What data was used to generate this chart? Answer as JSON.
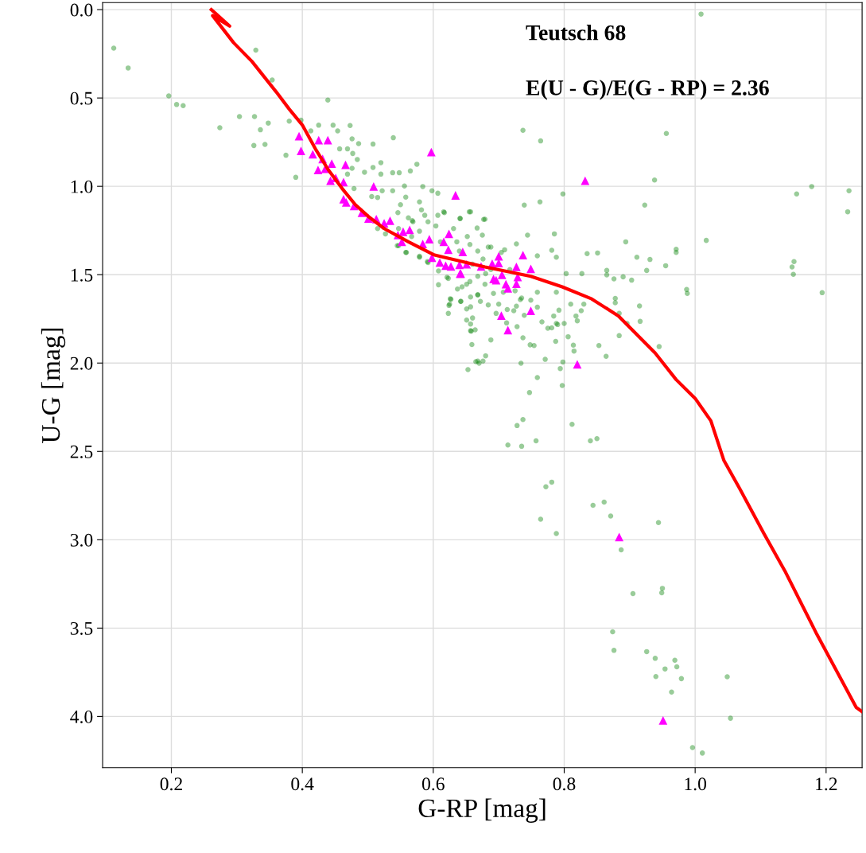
{
  "chart_data": {
    "type": "scatter",
    "xlabel": "G-RP [mag]",
    "ylabel": "U-G [mag]",
    "annotations": [
      "Teutsch 68",
      "E(U - G)/E(G - RP) = 2.36"
    ],
    "xlim": [
      0.095,
      1.255
    ],
    "ylim": [
      4.29,
      -0.04
    ],
    "xticks": [
      0.2,
      0.4,
      0.6,
      0.8,
      {
        "value": 1,
        "label": "1.0"
      },
      1.2
    ],
    "yticks": [
      {
        "value": 0,
        "label": "0.0"
      },
      0.5,
      {
        "value": 1,
        "label": "1.0"
      },
      1.5,
      {
        "value": 2,
        "label": "2.0"
      },
      2.5,
      {
        "value": 3,
        "label": "3.0"
      },
      3.5,
      {
        "value": 4,
        "label": "4.0"
      }
    ],
    "grid": true,
    "legend": false,
    "series": [
      {
        "marker": "circle",
        "color": "#008000",
        "x": [
          0.112,
          0.134,
          0.329,
          0.196,
          0.208,
          0.218,
          0.354,
          0.439,
          0.304,
          0.327,
          0.348,
          0.274,
          0.336,
          0.326,
          0.343,
          0.375,
          0.39,
          0.38,
          0.398,
          0.413,
          0.425,
          0.447,
          0.454,
          0.473,
          0.476,
          0.486,
          0.457,
          0.469,
          0.477,
          0.484,
          0.476,
          0.508,
          0.539,
          0.469,
          0.479,
          0.495,
          0.508,
          0.52,
          0.52,
          0.538,
          0.548,
          0.565,
          0.575,
          0.522,
          0.538,
          0.556,
          0.558,
          0.506,
          0.515,
          0.584,
          0.598,
          0.607,
          0.55,
          0.579,
          0.546,
          0.562,
          0.582,
          0.568,
          0.592,
          0.607,
          0.617,
          0.641,
          0.655,
          0.677,
          0.667,
          0.545,
          0.558,
          0.579,
          0.592,
          0.608,
          0.623,
          0.627,
          0.625,
          0.623,
          0.637,
          0.651,
          0.642,
          0.657,
          0.668,
          0.651,
          0.657,
          0.651,
          0.657,
          0.66,
          0.657,
          0.664,
          0.659,
          0.665,
          0.67,
          0.653,
          0.668,
          0.68,
          0.688,
          0.734,
          0.759,
          0.747,
          0.737,
          0.728,
          0.714,
          0.735,
          0.757,
          0.771,
          0.794,
          0.798,
          0.797,
          0.812,
          0.84,
          0.85,
          0.814,
          0.806,
          0.853,
          0.864,
          0.884,
          0.896,
          0.916,
          0.945,
          0.915,
          0.878,
          0.878,
          0.876,
          0.89,
          0.903,
          0.865,
          0.865,
          0.827,
          0.803,
          0.835,
          0.851,
          0.894,
          0.911,
          0.931,
          0.926,
          0.955,
          0.923,
          0.884,
          0.81,
          0.818,
          0.826,
          0.792,
          0.787,
          0.781,
          0.788,
          0.766,
          0.784,
          0.788,
          0.759,
          0.749,
          0.735,
          0.727,
          0.759,
          0.739,
          0.723,
          0.696,
          0.684,
          0.672,
          0.658,
          0.737,
          0.748,
          0.754,
          0.775,
          0.728,
          0.712,
          0.785,
          0.781,
          0.788,
          0.759,
          0.744,
          0.727,
          0.739,
          0.763,
          0.679,
          0.675,
          0.641,
          0.657,
          0.616,
          0.636,
          0.64,
          0.656,
          0.668,
          0.676,
          0.684,
          0.709,
          0.717,
          0.68,
          0.668,
          0.656,
          0.644,
          0.679,
          0.692,
          0.707,
          0.725,
          0.733,
          0.668,
          0.642,
          0.626,
          0.624,
          0.7,
          0.713,
          0.604,
          0.587,
          0.579,
          0.567,
          0.559,
          0.579,
          0.547,
          0.591,
          0.608,
          0.621,
          0.547,
          0.515,
          0.527,
          0.569,
          0.611,
          0.631,
          0.652,
          0.688,
          0.704,
          0.66,
          0.688,
          1.009,
          0.737,
          0.764,
          0.956,
          0.938,
          0.798,
          1.155,
          1.178,
          1.235,
          1.233,
          1.017,
          0.971,
          0.971,
          1.151,
          1.148,
          1.15,
          1.194,
          0.987,
          0.988,
          0.83,
          0.82,
          0.815,
          0.8,
          0.79,
          0.676,
          0.781,
          0.772,
          0.844,
          0.861,
          0.871,
          0.764,
          0.788,
          0.887,
          0.944,
          0.905,
          0.95,
          0.949,
          0.874,
          0.876,
          0.926,
          0.939,
          0.969,
          0.972,
          0.954,
          0.94,
          0.979,
          0.964,
          1.049,
          1.054,
          0.996,
          1.011
        ],
        "values": [
          0.218,
          0.33,
          0.229,
          0.488,
          0.537,
          0.543,
          0.398,
          0.512,
          0.605,
          0.605,
          0.642,
          0.668,
          0.68,
          0.769,
          0.763,
          0.824,
          0.949,
          0.631,
          0.626,
          0.686,
          0.654,
          0.654,
          0.686,
          0.656,
          0.731,
          0.758,
          0.788,
          0.788,
          0.814,
          0.848,
          0.898,
          0.761,
          0.725,
          0.931,
          1.013,
          0.92,
          0.893,
          0.866,
          0.931,
          0.923,
          0.923,
          0.913,
          0.875,
          1.025,
          1.025,
          0.998,
          1.061,
          1.058,
          1.063,
          1.001,
          1.025,
          1.039,
          1.104,
          1.088,
          1.149,
          1.178,
          1.133,
          1.194,
          1.201,
          1.164,
          1.149,
          1.182,
          1.144,
          1.187,
          1.236,
          1.336,
          1.374,
          1.401,
          1.431,
          1.557,
          1.521,
          1.64,
          1.667,
          1.719,
          1.581,
          1.554,
          1.651,
          1.626,
          1.614,
          1.694,
          1.682,
          1.757,
          1.779,
          1.745,
          1.817,
          1.812,
          1.895,
          1.992,
          2.001,
          2.037,
          1.989,
          1.959,
          1.869,
          2.001,
          2.082,
          2.167,
          2.32,
          2.354,
          2.464,
          2.471,
          2.44,
          1.979,
          2.031,
          1.994,
          2.127,
          2.347,
          2.44,
          2.428,
          1.899,
          1.851,
          1.901,
          1.962,
          1.845,
          1.776,
          1.764,
          1.907,
          1.677,
          1.659,
          1.634,
          1.524,
          1.512,
          1.531,
          1.476,
          1.501,
          1.494,
          1.494,
          1.381,
          1.377,
          1.314,
          1.401,
          1.414,
          1.476,
          1.449,
          1.106,
          1.719,
          1.667,
          1.734,
          1.704,
          1.701,
          1.877,
          1.801,
          1.776,
          1.767,
          1.734,
          1.599,
          1.599,
          1.644,
          1.632,
          1.678,
          1.684,
          1.73,
          1.704,
          1.719,
          1.671,
          1.651,
          1.82,
          1.857,
          1.897,
          1.901,
          1.803,
          1.794,
          1.773,
          1.269,
          1.362,
          1.401,
          1.393,
          1.276,
          1.326,
          1.106,
          1.088,
          1.186,
          1.276,
          1.182,
          1.144,
          1.144,
          1.314,
          1.366,
          1.329,
          1.366,
          1.411,
          1.344,
          1.359,
          1.471,
          1.494,
          1.509,
          1.539,
          1.569,
          1.554,
          1.606,
          1.599,
          1.591,
          1.641,
          1.614,
          1.651,
          1.636,
          1.674,
          1.667,
          1.697,
          1.224,
          1.164,
          1.254,
          1.284,
          1.374,
          1.396,
          1.336,
          1.426,
          1.479,
          1.515,
          1.239,
          1.239,
          1.269,
          1.201,
          1.314,
          1.239,
          1.284,
          1.344,
          1.374,
          1.441,
          1.471,
          0.025,
          0.683,
          0.743,
          0.701,
          0.964,
          1.043,
          1.043,
          1.001,
          1.025,
          1.144,
          1.306,
          1.356,
          1.374,
          1.426,
          1.456,
          1.498,
          1.602,
          1.584,
          1.606,
          1.667,
          1.761,
          1.932,
          1.776,
          1.782,
          1.989,
          2.674,
          2.7,
          2.805,
          2.787,
          2.866,
          2.884,
          2.965,
          3.057,
          2.903,
          3.305,
          3.275,
          3.3,
          3.521,
          3.626,
          3.633,
          3.671,
          3.682,
          3.719,
          3.731,
          3.774,
          3.786,
          3.862,
          3.775,
          4.01,
          4.176,
          4.207
        ]
      },
      {
        "marker": "triangle",
        "color": "#ff00ff",
        "x": [
          0.395,
          0.398,
          0.425,
          0.439,
          0.416,
          0.431,
          0.445,
          0.466,
          0.424,
          0.435,
          0.443,
          0.451,
          0.463,
          0.509,
          0.597,
          0.634,
          0.463,
          0.467,
          0.479,
          0.491,
          0.501,
          0.513,
          0.525,
          0.534,
          0.546,
          0.554,
          0.564,
          0.552,
          0.584,
          0.594,
          0.598,
          0.61,
          0.616,
          0.623,
          0.624,
          0.619,
          0.627,
          0.641,
          0.645,
          0.64,
          0.651,
          0.673,
          0.7,
          0.7,
          0.69,
          0.737,
          0.727,
          0.749,
          0.705,
          0.729,
          0.692,
          0.696,
          0.711,
          0.714,
          0.727,
          0.749,
          0.704,
          0.714,
          0.82,
          0.642,
          0.832,
          0.884,
          0.951
        ],
        "values": [
          0.716,
          0.799,
          0.739,
          0.739,
          0.818,
          0.845,
          0.871,
          0.878,
          0.908,
          0.901,
          0.968,
          0.953,
          0.976,
          1.001,
          0.806,
          1.051,
          1.073,
          1.091,
          1.111,
          1.149,
          1.182,
          1.186,
          1.209,
          1.194,
          1.276,
          1.257,
          1.246,
          1.314,
          1.326,
          1.299,
          1.404,
          1.431,
          1.314,
          1.359,
          1.269,
          1.449,
          1.453,
          1.494,
          1.371,
          1.444,
          1.441,
          1.453,
          1.396,
          1.434,
          1.438,
          1.389,
          1.456,
          1.467,
          1.501,
          1.513,
          1.524,
          1.531,
          1.554,
          1.577,
          1.551,
          1.704,
          1.731,
          1.814,
          2.007,
          1.494,
          0.968,
          2.985,
          4.022
        ]
      },
      {
        "type": "line",
        "line_style": "solid",
        "marker": "none",
        "color": "#ff0000",
        "x": [
          0.261,
          0.289,
          0.263,
          0.295,
          0.323,
          0.36,
          0.38,
          0.4,
          0.42,
          0.44,
          0.461,
          0.481,
          0.501,
          0.525,
          0.562,
          0.602,
          0.679,
          0.709,
          0.749,
          0.797,
          0.842,
          0.883,
          0.939,
          0.971,
          1.0,
          1.024,
          1.044,
          1.068,
          1.105,
          1.137,
          1.186,
          1.246,
          1.254
        ],
        "values": [
          0.0,
          0.093,
          0.034,
          0.187,
          0.293,
          0.465,
          0.563,
          0.653,
          0.788,
          0.908,
          1.013,
          1.104,
          1.171,
          1.239,
          1.314,
          1.389,
          1.456,
          1.479,
          1.509,
          1.569,
          1.637,
          1.734,
          1.944,
          2.094,
          2.2,
          2.327,
          2.552,
          2.71,
          2.965,
          3.176,
          3.536,
          3.949,
          3.97
        ]
      }
    ]
  }
}
